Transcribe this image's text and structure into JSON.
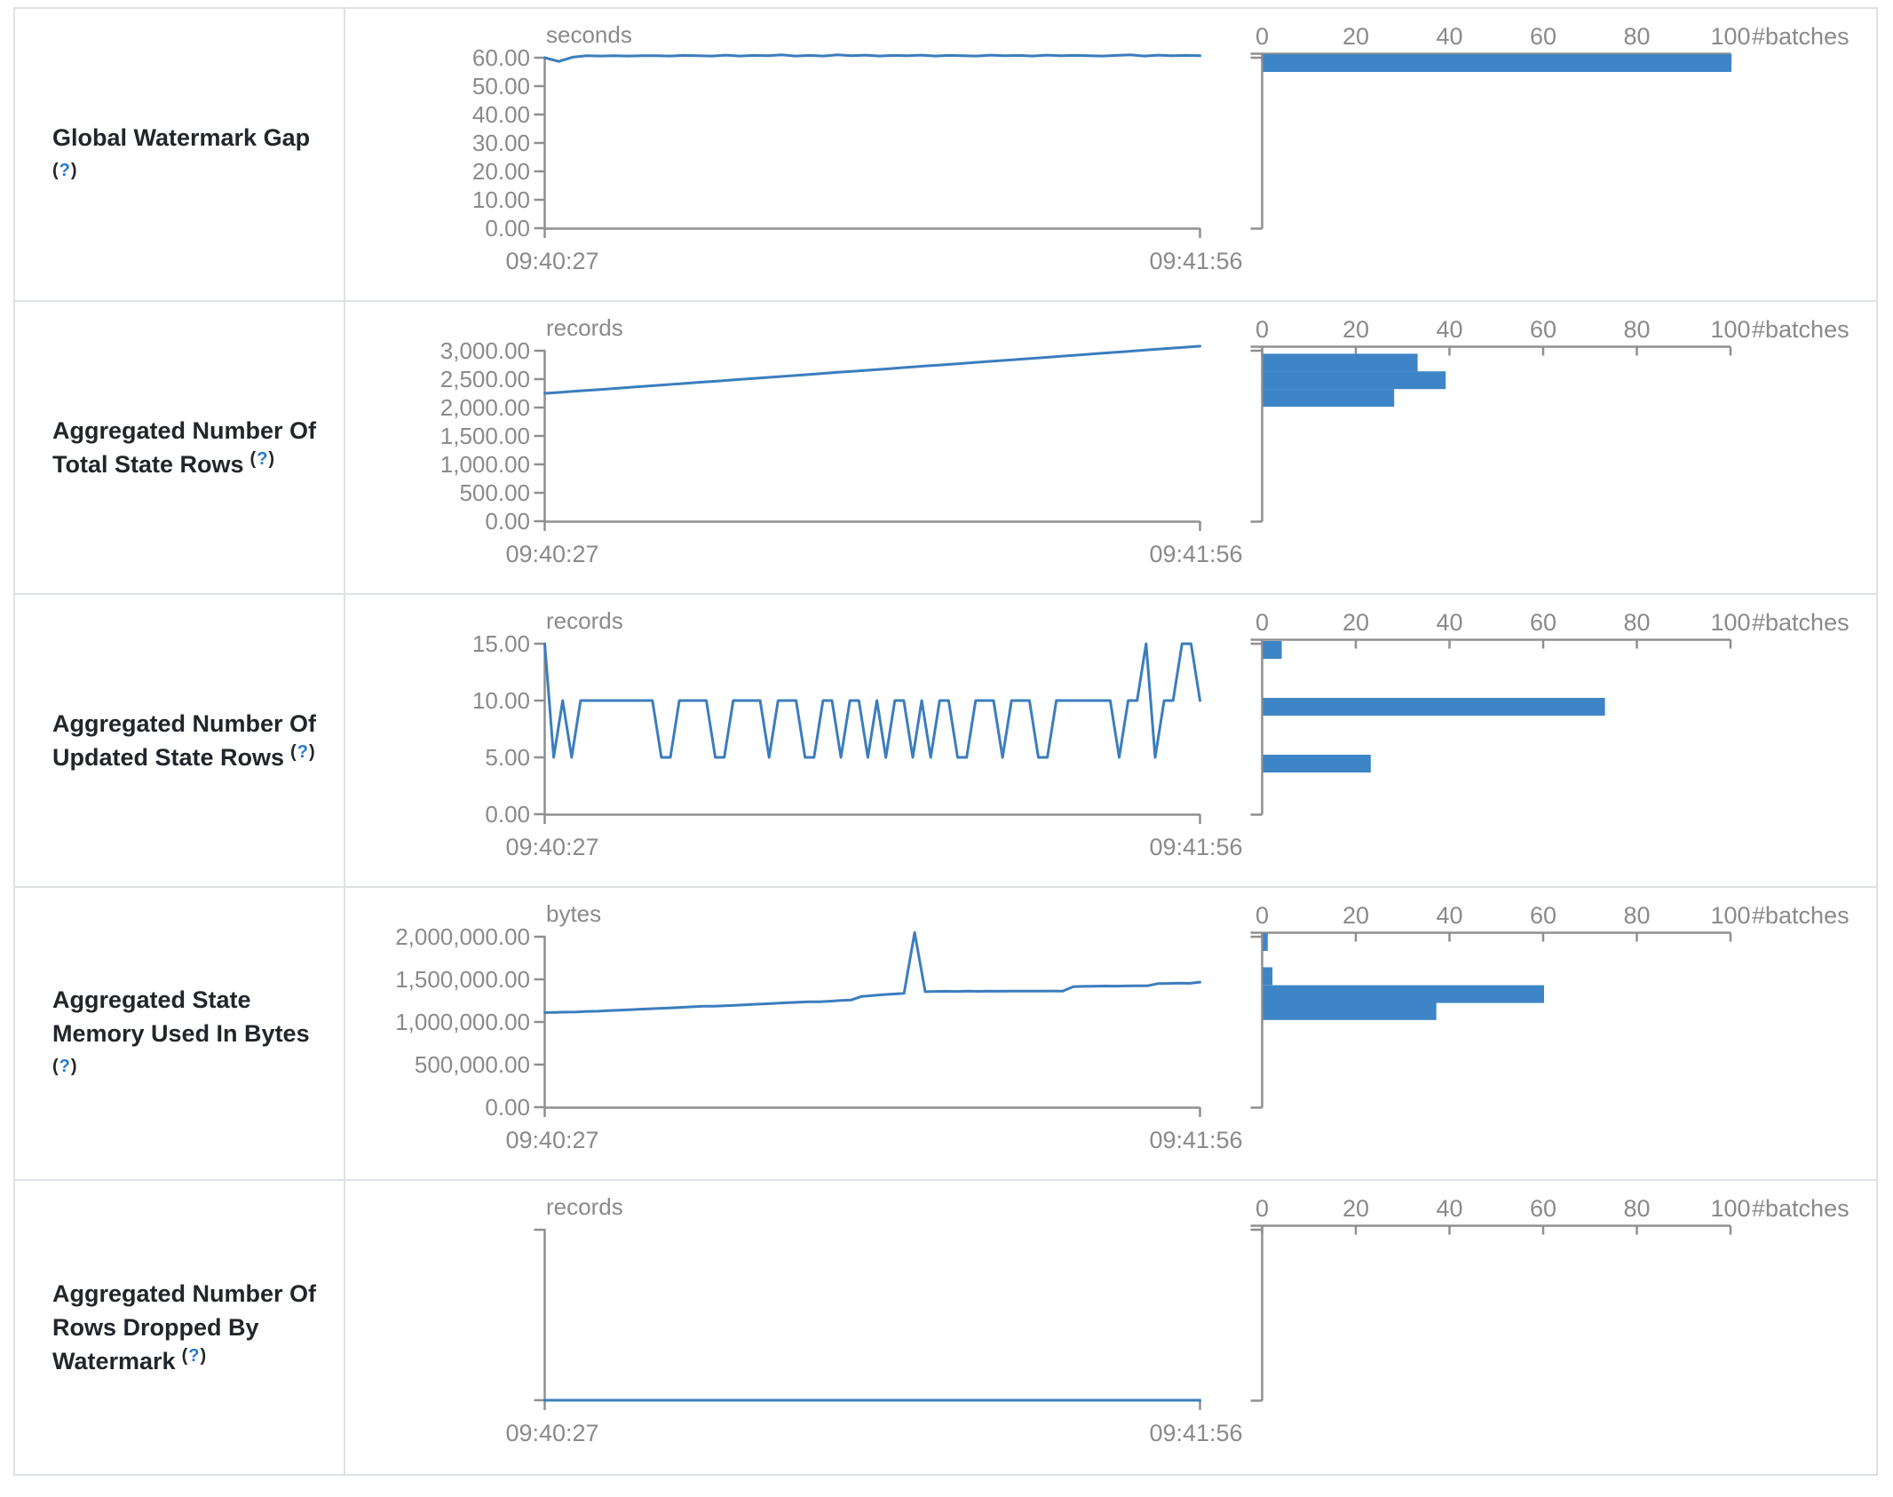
{
  "page": {
    "background": "#ffffff",
    "table_border_color": "#dee2e6"
  },
  "colors": {
    "line": "#3b7dbe",
    "bar": "#3d85c6",
    "axis": "#8f8f8f",
    "axis_text": "#8a8a8a",
    "label_text": "#22262b",
    "help_question": "#2478d2"
  },
  "time_axis": {
    "start": "09:40:27",
    "end": "09:41:56"
  },
  "histogram_axis": {
    "tick_labels": [
      "0",
      "20",
      "40",
      "60",
      "80",
      "100"
    ],
    "tick_values": [
      0,
      20,
      40,
      60,
      80,
      100
    ],
    "unit_label": "#batches"
  },
  "help_symbol": "(?)",
  "rows": [
    {
      "id": "global-watermark-gap",
      "label_lines": [
        "Global Watermark Gap"
      ],
      "help_position": "newline",
      "chart_data": {
        "type": "line",
        "title": "Global Watermark Gap",
        "ylabel": "seconds",
        "x_start": "09:40:27",
        "x_end": "09:41:56",
        "y_tick_labels": [
          "60.00",
          "50.00",
          "40.00",
          "30.00",
          "20.00",
          "10.00",
          "0.00"
        ],
        "y_tick_values": [
          60,
          50,
          40,
          30,
          20,
          10,
          0
        ],
        "values": [
          60.0,
          58.7,
          60.2,
          60.7,
          60.6,
          60.7,
          60.6,
          60.7,
          60.7,
          60.6,
          60.8,
          60.7,
          60.6,
          60.9,
          60.6,
          60.8,
          60.7,
          61.0,
          60.6,
          60.8,
          60.6,
          61.0,
          60.7,
          60.9,
          60.6,
          60.8,
          60.7,
          60.9,
          60.6,
          60.8,
          60.7,
          60.6,
          60.9,
          60.7,
          60.8,
          60.6,
          60.9,
          60.7,
          60.8,
          60.7,
          60.6,
          60.8,
          61.0,
          60.6,
          60.9,
          60.7,
          60.8,
          60.7
        ],
        "histogram_unit": "#batches",
        "histogram_bins": [
          {
            "value": 60.5,
            "count": 100
          }
        ]
      }
    },
    {
      "id": "aggregated-total-state-rows",
      "label_lines": [
        "Aggregated Number Of",
        "Total State Rows"
      ],
      "help_position": "inline",
      "chart_data": {
        "type": "line",
        "title": "Aggregated Number Of Total State Rows",
        "ylabel": "records",
        "x_start": "09:40:27",
        "x_end": "09:41:56",
        "y_tick_labels": [
          "3,000.00",
          "2,500.00",
          "2,000.00",
          "1,500.00",
          "1,000.00",
          "500.00",
          "0.00"
        ],
        "y_tick_values": [
          3000,
          2500,
          2000,
          1500,
          1000,
          500,
          0
        ],
        "values": [
          2250,
          2270,
          2292,
          2313,
          2335,
          2358,
          2380,
          2400,
          2422,
          2445,
          2466,
          2488,
          2510,
          2532,
          2553,
          2575,
          2598,
          2620,
          2641,
          2663,
          2685,
          2708,
          2730,
          2750,
          2772,
          2795,
          2817,
          2838,
          2860,
          2882,
          2905,
          2927,
          2948,
          2970,
          2992,
          3015,
          3037,
          3058,
          3080
        ],
        "histogram_unit": "#batches",
        "histogram_bins": [
          {
            "value": 2900,
            "count": 33
          },
          {
            "value": 2590,
            "count": 39
          },
          {
            "value": 2280,
            "count": 28
          }
        ]
      }
    },
    {
      "id": "aggregated-updated-state-rows",
      "label_lines": [
        "Aggregated Number Of",
        "Updated State Rows"
      ],
      "help_position": "inline",
      "chart_data": {
        "type": "line",
        "title": "Aggregated Number Of Updated State Rows",
        "ylabel": "records",
        "x_start": "09:40:27",
        "x_end": "09:41:56",
        "y_tick_labels": [
          "15.00",
          "10.00",
          "5.00",
          "0.00"
        ],
        "y_tick_values": [
          15,
          10,
          5,
          0
        ],
        "values": [
          15,
          5,
          10,
          5,
          10,
          10,
          10,
          10,
          10,
          10,
          10,
          10,
          10,
          5,
          5,
          10,
          10,
          10,
          10,
          5,
          5,
          10,
          10,
          10,
          10,
          5,
          10,
          10,
          10,
          5,
          5,
          10,
          10,
          5,
          10,
          10,
          5,
          10,
          5,
          10,
          10,
          5,
          10,
          5,
          10,
          10,
          5,
          5,
          10,
          10,
          10,
          5,
          10,
          10,
          10,
          5,
          5,
          10,
          10,
          10,
          10,
          10,
          10,
          10,
          5,
          10,
          10,
          15,
          5,
          10,
          10,
          15,
          15,
          10
        ],
        "histogram_unit": "#batches",
        "histogram_bins": [
          {
            "value": 15,
            "count": 4
          },
          {
            "value": 10,
            "count": 73
          },
          {
            "value": 5,
            "count": 23
          }
        ]
      }
    },
    {
      "id": "aggregated-state-memory-used",
      "label_lines": [
        "Aggregated State",
        "Memory Used In Bytes"
      ],
      "help_position": "newline",
      "chart_data": {
        "type": "line",
        "title": "Aggregated State Memory Used In Bytes",
        "ylabel": "bytes",
        "x_start": "09:40:27",
        "x_end": "09:41:56",
        "y_tick_labels": [
          "2,000,000.00",
          "1,500,000.00",
          "1,000,000.00",
          "500,000.00",
          "0.00"
        ],
        "y_tick_values": [
          2000000,
          1500000,
          1000000,
          500000,
          0
        ],
        "values": [
          1110000,
          1113000,
          1116000,
          1118000,
          1124000,
          1126000,
          1132000,
          1138000,
          1144000,
          1150000,
          1155000,
          1160000,
          1166000,
          1172000,
          1178000,
          1184000,
          1184000,
          1190000,
          1196000,
          1202000,
          1208000,
          1214000,
          1220000,
          1226000,
          1232000,
          1238000,
          1238000,
          1244000,
          1252000,
          1258000,
          1300000,
          1310000,
          1320000,
          1328000,
          1335000,
          2050000,
          1355000,
          1358000,
          1360000,
          1358000,
          1361000,
          1359000,
          1362000,
          1360000,
          1362000,
          1361000,
          1363000,
          1362000,
          1364000,
          1363000,
          1415000,
          1418000,
          1420000,
          1422000,
          1421000,
          1423000,
          1425000,
          1424000,
          1450000,
          1452000,
          1455000,
          1453000,
          1468000
        ],
        "histogram_unit": "#batches",
        "histogram_bins": [
          {
            "value": 2030000,
            "count": 1
          },
          {
            "value": 1610000,
            "count": 2
          },
          {
            "value": 1400000,
            "count": 60
          },
          {
            "value": 1200000,
            "count": 37
          }
        ]
      }
    },
    {
      "id": "aggregated-rows-dropped-by-watermark",
      "label_lines": [
        "Aggregated Number Of",
        "Rows Dropped By",
        "Watermark"
      ],
      "help_position": "inline",
      "chart_data": {
        "type": "line",
        "title": "Aggregated Number Of Rows Dropped By Watermark",
        "ylabel": "records",
        "x_start": "09:40:27",
        "x_end": "09:41:56",
        "y_tick_labels": [],
        "y_tick_values": [],
        "values": [
          0,
          0,
          0,
          0,
          0,
          0,
          0,
          0,
          0,
          0
        ],
        "histogram_unit": "#batches",
        "histogram_bins": []
      }
    }
  ]
}
